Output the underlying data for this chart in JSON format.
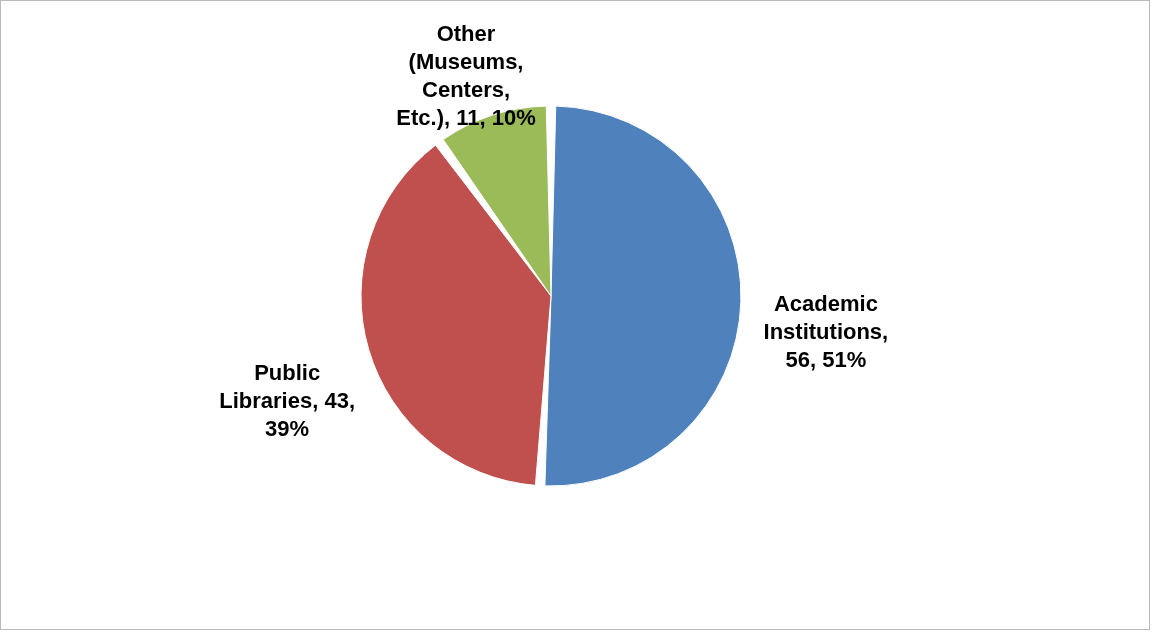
{
  "chart_data": {
    "type": "pie",
    "categories": [
      "Academic Institutions",
      "Public Libraries",
      "Other (Museums, Centers, Etc.)"
    ],
    "values": [
      56,
      43,
      11
    ],
    "value_labels": [
      ", 56, 51%",
      ", 43, 39%",
      ", 11, 10%"
    ],
    "colors": [
      "#4f81bd",
      "#c0504d",
      "#9bbb59"
    ],
    "legend": false
  }
}
